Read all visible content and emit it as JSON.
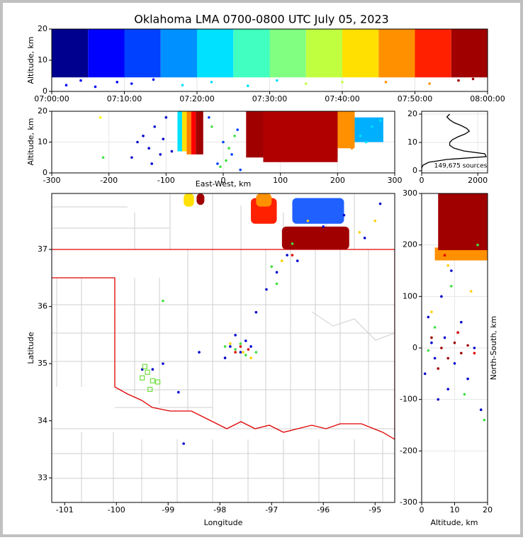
{
  "chart_data": [
    {
      "type": "scatter",
      "title": "Oklahoma LMA 0700-0800 UTC July 05, 2023",
      "ylabel": "Altitude, km",
      "grid": true,
      "xlim": [
        0,
        60
      ],
      "xticks": [
        {
          "value": 0,
          "label": "07:00:00"
        },
        {
          "value": 10,
          "label": "07:10:00"
        },
        {
          "value": 20,
          "label": "07:20:00"
        },
        {
          "value": 30,
          "label": "07:30:00"
        },
        {
          "value": 40,
          "label": "07:40:00"
        },
        {
          "value": 50,
          "label": "07:50:00"
        },
        {
          "value": 60,
          "label": "08:00:00"
        }
      ],
      "ylim": [
        0,
        20
      ],
      "yticks": [
        0,
        10,
        20
      ],
      "bands": [
        {
          "x": [
            0,
            5
          ],
          "y": [
            4.5,
            20
          ],
          "color": "#00008f"
        },
        {
          "x": [
            5,
            10
          ],
          "y": [
            4.5,
            20
          ],
          "color": "#0000ff"
        },
        {
          "x": [
            10,
            15
          ],
          "y": [
            4.5,
            20
          ],
          "color": "#0040ff"
        },
        {
          "x": [
            15,
            20
          ],
          "y": [
            4.5,
            20
          ],
          "color": "#0090ff"
        },
        {
          "x": [
            20,
            25
          ],
          "y": [
            4.5,
            20
          ],
          "color": "#00e0ff"
        },
        {
          "x": [
            25,
            30
          ],
          "y": [
            4.5,
            20
          ],
          "color": "#40ffc0"
        },
        {
          "x": [
            30,
            35
          ],
          "y": [
            4.5,
            20
          ],
          "color": "#80ff80"
        },
        {
          "x": [
            35,
            40
          ],
          "y": [
            4.5,
            20
          ],
          "color": "#c0ff40"
        },
        {
          "x": [
            40,
            45
          ],
          "y": [
            4.5,
            20
          ],
          "color": "#ffe000"
        },
        {
          "x": [
            45,
            50
          ],
          "y": [
            4.5,
            20
          ],
          "color": "#ff9000"
        },
        {
          "x": [
            50,
            55
          ],
          "y": [
            4.5,
            20
          ],
          "color": "#ff2000"
        },
        {
          "x": [
            55,
            60
          ],
          "y": [
            4.5,
            20
          ],
          "color": "#a00000"
        }
      ],
      "series": [
        {
          "color": "#0000ff",
          "x": [
            2,
            4,
            6,
            9,
            11,
            14
          ],
          "y": [
            2,
            3.5,
            1.5,
            3,
            2.5,
            3.8
          ]
        },
        {
          "color": "#00e0ff",
          "x": [
            18,
            22,
            27,
            31
          ],
          "y": [
            2,
            3,
            1.8,
            3.5
          ]
        },
        {
          "color": "#c0ff40",
          "x": [
            35,
            40
          ],
          "y": [
            2.5,
            3
          ]
        },
        {
          "color": "#ff9000",
          "x": [
            46,
            52
          ],
          "y": [
            3,
            2.5
          ]
        },
        {
          "color": "#a00000",
          "x": [
            56,
            58
          ],
          "y": [
            3.5,
            4
          ]
        }
      ]
    },
    {
      "type": "scatter",
      "xlabel": "East-West, km",
      "ylabel": "Altitude, km",
      "grid": true,
      "xlim": [
        -300,
        300
      ],
      "xticks": [
        -300,
        -200,
        -100,
        0,
        100,
        200,
        300
      ],
      "ylim": [
        0,
        20
      ],
      "yticks": [
        0,
        10,
        20
      ],
      "bands": [
        {
          "x": [
            -80,
            -72
          ],
          "y": [
            7,
            20
          ],
          "color": "#00e0ff"
        },
        {
          "x": [
            -72,
            -64
          ],
          "y": [
            7,
            20
          ],
          "color": "#ffe000"
        },
        {
          "x": [
            -64,
            -56
          ],
          "y": [
            6,
            20
          ],
          "color": "#ff8000"
        },
        {
          "x": [
            -56,
            -48
          ],
          "y": [
            6,
            20
          ],
          "color": "#ff0000"
        },
        {
          "x": [
            -48,
            -35
          ],
          "y": [
            6,
            20
          ],
          "color": "#a00000"
        },
        {
          "x": [
            200,
            230
          ],
          "y": [
            8,
            20
          ],
          "color": "#ff9000"
        },
        {
          "x": [
            230,
            280
          ],
          "y": [
            10,
            18
          ],
          "color": "#00b0ff"
        },
        {
          "x": [
            40,
            200
          ],
          "y": [
            5,
            20
          ],
          "color": "#a00000"
        },
        {
          "x": [
            70,
            200
          ],
          "y": [
            3.5,
            20
          ],
          "color": "#b00000"
        }
      ],
      "series": [
        {
          "color": "#0000cc",
          "x": [
            -160,
            -140,
            -130,
            -120,
            -110,
            -100,
            -150,
            -125,
            -105,
            -90
          ],
          "y": [
            5,
            12,
            8,
            15,
            6,
            18,
            10,
            3,
            11,
            7
          ]
        },
        {
          "color": "#40e040",
          "x": [
            -210,
            -5,
            10,
            20,
            -20,
            5
          ],
          "y": [
            5,
            2,
            8,
            12,
            15,
            4
          ]
        },
        {
          "color": "#0040ff",
          "x": [
            -10,
            0,
            15,
            30,
            25,
            -25
          ],
          "y": [
            3,
            10,
            6,
            1,
            14,
            18
          ]
        },
        {
          "color": "#00e0ff",
          "x": [
            240,
            260,
            275,
            250
          ],
          "y": [
            12,
            15,
            17,
            10
          ]
        },
        {
          "color": "#ff9000",
          "x": [
            205,
            215,
            225
          ],
          "y": [
            10,
            14,
            8
          ]
        },
        {
          "color": "#ffff00",
          "x": [
            -215
          ],
          "y": [
            18
          ]
        }
      ]
    },
    {
      "type": "line",
      "annotation": "149,675 sources",
      "grid": true,
      "xlim": [
        0,
        2350
      ],
      "xticks": [
        0,
        2000
      ],
      "ylim": [
        -0.75,
        21
      ],
      "yticks": [
        0,
        10,
        20
      ],
      "color": "#000000",
      "y": [
        0,
        1,
        2,
        3,
        4,
        5,
        6,
        7,
        8,
        9,
        10,
        11,
        12,
        13,
        14,
        15,
        16,
        17,
        18,
        19,
        20
      ],
      "values": [
        0,
        0,
        50,
        250,
        900,
        2300,
        2250,
        1500,
        1150,
        1000,
        1000,
        1100,
        1300,
        1550,
        1700,
        1600,
        1400,
        1150,
        1000,
        900,
        1000
      ]
    },
    {
      "type": "map",
      "xlabel": "Longitude",
      "ylabel": "Latitude",
      "grid": false,
      "xlim": [
        -101.25,
        -94.62
      ],
      "xticks": [
        -101,
        -100,
        -99,
        -98,
        -97,
        -96,
        -95
      ],
      "ylim": [
        32.57,
        37.98
      ],
      "yticks": [
        33,
        34,
        35,
        36,
        37
      ],
      "bands": [
        {
          "x": [
            -96.6,
            -95.6
          ],
          "y": [
            37.45,
            37.9
          ],
          "color": "#2060ff"
        },
        {
          "x": [
            -98.7,
            -98.5
          ],
          "y": [
            37.75,
            37.98
          ],
          "color": "#ffe000"
        },
        {
          "x": [
            -98.45,
            -98.3
          ],
          "y": [
            37.78,
            37.98
          ],
          "color": "#a00000"
        },
        {
          "x": [
            -97.4,
            -96.9
          ],
          "y": [
            37.45,
            37.9
          ],
          "color": "#ff2000"
        },
        {
          "x": [
            -97.3,
            -97.0
          ],
          "y": [
            37.75,
            37.98
          ],
          "color": "#ff9000"
        },
        {
          "x": [
            -96.8,
            -95.5
          ],
          "y": [
            37.0,
            37.4
          ],
          "color": "#a00000"
        }
      ],
      "series": [
        {
          "color": "#0000cc",
          "x": [
            -97.8,
            -97.6,
            -97.5,
            -97.9,
            -97.7,
            -97.4,
            -97.3,
            -99.1,
            -99.3,
            -98.8,
            -98.4,
            -96.9,
            -96.7,
            -97.1,
            -96.5,
            -96.0,
            -95.6,
            -95.2,
            -94.9,
            -98.7,
            -99.5
          ],
          "y": [
            35.3,
            35.2,
            35.4,
            35.1,
            35.5,
            35.3,
            35.9,
            35.0,
            34.9,
            34.5,
            35.2,
            36.6,
            36.9,
            36.3,
            36.8,
            37.4,
            37.6,
            37.2,
            37.8,
            33.6,
            34.9
          ]
        },
        {
          "color": "#40e040",
          "x": [
            -97.7,
            -97.5,
            -97.6,
            -97.9,
            -97.3,
            -96.9,
            -97.0,
            -99.1,
            -96.6
          ],
          "y": [
            35.25,
            35.15,
            35.35,
            35.3,
            35.2,
            36.4,
            36.7,
            36.1,
            37.1
          ]
        },
        {
          "color": "#ffd000",
          "x": [
            -97.8,
            -97.55,
            -97.4,
            -96.8,
            -96.3,
            -95.3,
            -95.0
          ],
          "y": [
            35.35,
            35.2,
            35.1,
            36.8,
            37.5,
            37.3,
            37.5
          ]
        },
        {
          "color": "#e00000",
          "x": [
            -97.6,
            -97.7,
            -97.45,
            -96.6
          ],
          "y": [
            35.3,
            35.2,
            35.25,
            36.9
          ]
        },
        {
          "color": "#70e040",
          "marker": "square-open",
          "x": [
            -99.45,
            -99.4,
            -99.3,
            -99.5,
            -99.2,
            -99.35
          ],
          "y": [
            34.95,
            34.85,
            34.7,
            34.75,
            34.68,
            34.55
          ]
        }
      ]
    },
    {
      "type": "scatter",
      "xlabel": "Altitude, km",
      "ylabel": "North-South, km",
      "grid": true,
      "xlim": [
        0,
        20
      ],
      "xticks": [
        0,
        10,
        20
      ],
      "ylim": [
        -300,
        300
      ],
      "yticks": [
        -300,
        -200,
        -100,
        0,
        100,
        200,
        300
      ],
      "bands": [
        {
          "x": [
            4,
            20
          ],
          "y": [
            170,
            195
          ],
          "color": "#ff9000"
        },
        {
          "x": [
            5,
            20
          ],
          "y": [
            190,
            300
          ],
          "color": "#a00000"
        }
      ],
      "series": [
        {
          "color": "#0000cc",
          "x": [
            1,
            3,
            5,
            7,
            8,
            10,
            12,
            14,
            16,
            18,
            6,
            9,
            11,
            4,
            2
          ],
          "y": [
            -50,
            10,
            -100,
            20,
            -80,
            -30,
            50,
            -60,
            0,
            -120,
            100,
            150,
            30,
            -20,
            60
          ]
        },
        {
          "color": "#a00000",
          "x": [
            6,
            8,
            10,
            12,
            14,
            3,
            5
          ],
          "y": [
            0,
            -20,
            10,
            -10,
            5,
            20,
            -40
          ]
        },
        {
          "color": "#40e040",
          "x": [
            2,
            4,
            9,
            13,
            17,
            19
          ],
          "y": [
            -5,
            40,
            120,
            -90,
            200,
            -140
          ]
        },
        {
          "color": "#ffd000",
          "x": [
            3,
            8,
            15
          ],
          "y": [
            70,
            160,
            110
          ]
        },
        {
          "color": "#e00000",
          "x": [
            11,
            16,
            7
          ],
          "y": [
            30,
            -10,
            180
          ]
        }
      ]
    }
  ]
}
